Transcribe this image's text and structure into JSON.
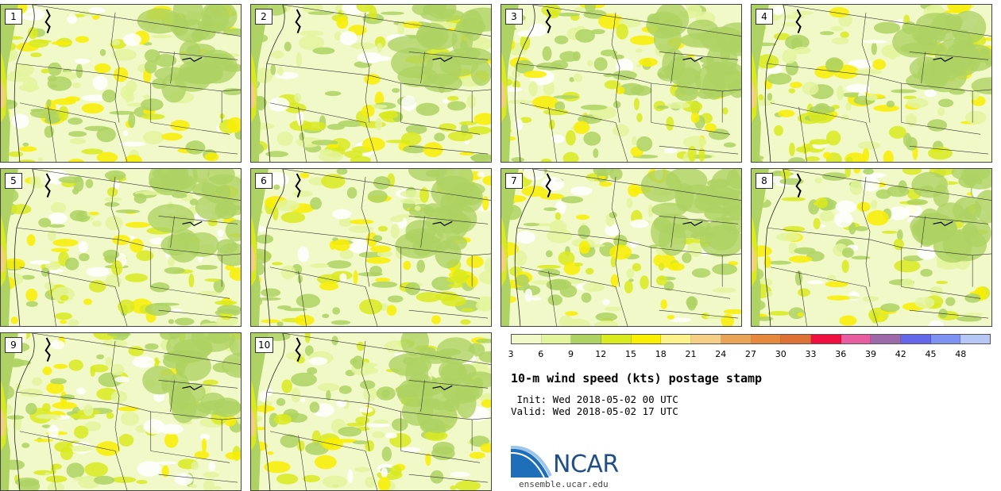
{
  "panels": [
    {
      "label": "1"
    },
    {
      "label": "2"
    },
    {
      "label": "3"
    },
    {
      "label": "4"
    },
    {
      "label": "5"
    },
    {
      "label": "6"
    },
    {
      "label": "7"
    },
    {
      "label": "8"
    },
    {
      "label": "9"
    },
    {
      "label": "10"
    }
  ],
  "colorbar": {
    "colors": [
      "#f2f9c9",
      "#e3f59c",
      "#aed263",
      "#d9ea1f",
      "#f9ef00",
      "#fbf38a",
      "#f5cf86",
      "#eaa457",
      "#e6893c",
      "#de7236",
      "#ee0f40",
      "#e85ca0",
      "#9c6aa8",
      "#6467ea",
      "#7d92f2",
      "#b7c7f5"
    ],
    "tick_labels": [
      "3",
      "6",
      "9",
      "12",
      "15",
      "18",
      "21",
      "24",
      "27",
      "30",
      "33",
      "36",
      "39",
      "42",
      "45",
      "48"
    ]
  },
  "title": "10-m wind speed (kts) postage stamp",
  "init_text": " Init: Wed 2018-05-02 00 UTC",
  "valid_text": "Valid: Wed 2018-05-02 17 UTC",
  "logo": {
    "name": "NCAR",
    "url": "ensemble.ucar.edu",
    "colors": {
      "blue": "#1f4f8a",
      "light_blue": "#7fb0e0"
    }
  }
}
